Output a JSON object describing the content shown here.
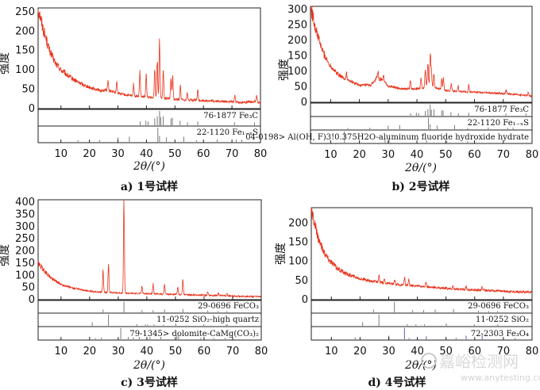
{
  "colors": {
    "trace": "#e8341c",
    "peak": "#7a7a7a",
    "peak_alt": "#5b63a8"
  },
  "watermark": {
    "logo": "嘉峪检测网",
    "url": "www.anytesting.com"
  },
  "chart_data": [
    {
      "type": "line",
      "caption": "a) 1号试样",
      "ylabel": "强度",
      "xlabel": "2θ/(°)",
      "xlim": [
        2,
        80
      ],
      "ylim": [
        0,
        260
      ],
      "yticks": [
        0,
        50,
        100,
        150,
        200,
        250
      ],
      "xticks": [
        10,
        20,
        30,
        40,
        50,
        60,
        70,
        80
      ],
      "baseline": [
        [
          2,
          260
        ],
        [
          4,
          200
        ],
        [
          6,
          150
        ],
        [
          8,
          118
        ],
        [
          10,
          100
        ],
        [
          13,
          82
        ],
        [
          16,
          68
        ],
        [
          20,
          55
        ],
        [
          24,
          46
        ],
        [
          26,
          48
        ],
        [
          28,
          44
        ],
        [
          32,
          36
        ],
        [
          36,
          32
        ],
        [
          40,
          30
        ],
        [
          44,
          28
        ],
        [
          50,
          24
        ],
        [
          56,
          22
        ],
        [
          62,
          20
        ],
        [
          68,
          18
        ],
        [
          74,
          16
        ],
        [
          78,
          18
        ],
        [
          80,
          14
        ]
      ],
      "peaks": [
        [
          26.5,
          25
        ],
        [
          29.6,
          30
        ],
        [
          35.5,
          32
        ],
        [
          37.7,
          65
        ],
        [
          39.9,
          55
        ],
        [
          42.9,
          78
        ],
        [
          43.8,
          100
        ],
        [
          44.6,
          152
        ],
        [
          45.9,
          70
        ],
        [
          48.6,
          55
        ],
        [
          49.2,
          58
        ],
        [
          51.9,
          35
        ],
        [
          54.3,
          18
        ],
        [
          58.0,
          28
        ],
        [
          71.0,
          18
        ],
        [
          78.7,
          18
        ]
      ],
      "references": [
        {
          "label": "76-1877 Fe₃C",
          "lines": [
            [
              37.8,
              0.25
            ],
            [
              39.8,
              0.3
            ],
            [
              40.6,
              0.25
            ],
            [
              42.9,
              0.45
            ],
            [
              43.8,
              0.6
            ],
            [
              44.6,
              0.95
            ],
            [
              45.0,
              0.55
            ],
            [
              45.9,
              0.6
            ],
            [
              48.6,
              0.45
            ],
            [
              49.1,
              0.5
            ],
            [
              51.8,
              0.3
            ],
            [
              54.4,
              0.2
            ],
            [
              58.0,
              0.25
            ],
            [
              70.9,
              0.2
            ],
            [
              77.9,
              0.2
            ]
          ]
        },
        {
          "label": "22-1120 Fe₁₋ₓS",
          "lines": [
            [
              16.0,
              0.1
            ],
            [
              23.6,
              0.12
            ],
            [
              30.0,
              0.3
            ],
            [
              34.0,
              0.35
            ],
            [
              44.0,
              0.95
            ],
            [
              44.6,
              0.4
            ],
            [
              47.0,
              0.3
            ],
            [
              53.1,
              0.35
            ],
            [
              57.6,
              0.1
            ],
            [
              64.8,
              0.15
            ],
            [
              71.5,
              0.15
            ],
            [
              73.4,
              0.15
            ]
          ]
        }
      ]
    },
    {
      "type": "line",
      "caption": "b) 2号试样",
      "ylabel": "强度",
      "xlabel": "2θ/(°)",
      "xlim": [
        3,
        80
      ],
      "ylim": [
        0,
        310
      ],
      "yticks": [
        0,
        50,
        100,
        150,
        200,
        250,
        300
      ],
      "xticks": [
        10,
        20,
        30,
        40,
        50,
        60,
        70,
        80
      ],
      "baseline": [
        [
          3,
          310
        ],
        [
          5,
          230
        ],
        [
          7,
          170
        ],
        [
          9,
          130
        ],
        [
          12,
          95
        ],
        [
          15,
          75
        ],
        [
          20,
          55
        ],
        [
          24,
          55
        ],
        [
          26,
          78
        ],
        [
          28,
          72
        ],
        [
          30,
          52
        ],
        [
          34,
          45
        ],
        [
          38,
          42
        ],
        [
          42,
          45
        ],
        [
          44,
          55
        ],
        [
          46,
          48
        ],
        [
          50,
          38
        ],
        [
          56,
          34
        ],
        [
          62,
          32
        ],
        [
          70,
          28
        ],
        [
          76,
          24
        ],
        [
          80,
          20
        ]
      ],
      "peaks": [
        [
          15.5,
          22
        ],
        [
          26.4,
          22
        ],
        [
          28.4,
          18
        ],
        [
          37.7,
          28
        ],
        [
          41.4,
          38
        ],
        [
          42.9,
          60
        ],
        [
          43.8,
          75
        ],
        [
          44.6,
          110
        ],
        [
          45.0,
          60
        ],
        [
          45.9,
          45
        ],
        [
          48.6,
          35
        ],
        [
          49.2,
          40
        ],
        [
          51.9,
          22
        ],
        [
          54.3,
          18
        ],
        [
          58.0,
          22
        ],
        [
          71.0,
          12
        ],
        [
          78.7,
          10
        ]
      ],
      "references": [
        {
          "label": "76-1877 Fe₃C",
          "lines": [
            [
              37.8,
              0.2
            ],
            [
              39.8,
              0.25
            ],
            [
              40.6,
              0.2
            ],
            [
              42.9,
              0.4
            ],
            [
              43.8,
              0.55
            ],
            [
              44.6,
              0.95
            ],
            [
              45.0,
              0.5
            ],
            [
              45.9,
              0.55
            ],
            [
              48.6,
              0.45
            ],
            [
              49.1,
              0.45
            ],
            [
              51.8,
              0.3
            ],
            [
              54.4,
              0.2
            ],
            [
              58.0,
              0.25
            ],
            [
              70.9,
              0.2
            ],
            [
              77.9,
              0.2
            ]
          ]
        },
        {
          "label": "22-1120 Fe₁₋ₓS",
          "lines": [
            [
              16.0,
              0.1
            ],
            [
              23.6,
              0.12
            ],
            [
              30.0,
              0.3
            ],
            [
              34.0,
              0.35
            ],
            [
              44.0,
              0.95
            ],
            [
              44.6,
              0.4
            ],
            [
              47.0,
              0.3
            ],
            [
              53.1,
              0.35
            ],
            [
              57.6,
              0.1
            ],
            [
              64.8,
              0.15
            ],
            [
              71.5,
              0.15
            ],
            [
              73.4,
              0.15
            ]
          ]
        },
        {
          "label": "04-0198> Al(OH, F)3!0.375H2O-aluminum fluoride hydroxide hydrate",
          "lines": [
            [
              14.8,
              0.95
            ],
            [
              28.9,
              0.25
            ],
            [
              30.3,
              0.3
            ],
            [
              43.3,
              0.2
            ],
            [
              50.4,
              0.15
            ],
            [
              57.6,
              0.12
            ]
          ]
        }
      ]
    },
    {
      "type": "line",
      "caption": "c) 3号试样",
      "ylabel": "强度",
      "xlabel": "2θ/(°)",
      "xlim": [
        2,
        80
      ],
      "ylim": [
        0,
        410
      ],
      "yticks": [
        0,
        50,
        100,
        150,
        200,
        250,
        300,
        350,
        400
      ],
      "xticks": [
        10,
        20,
        30,
        40,
        50,
        60,
        70,
        80
      ],
      "baseline": [
        [
          2,
          150
        ],
        [
          4,
          120
        ],
        [
          6,
          95
        ],
        [
          8,
          78
        ],
        [
          10,
          62
        ],
        [
          14,
          48
        ],
        [
          18,
          38
        ],
        [
          22,
          32
        ],
        [
          26,
          30
        ],
        [
          30,
          28
        ],
        [
          34,
          26
        ],
        [
          38,
          25
        ],
        [
          42,
          24
        ],
        [
          48,
          22
        ],
        [
          54,
          20
        ],
        [
          60,
          18
        ],
        [
          66,
          16
        ],
        [
          72,
          14
        ],
        [
          80,
          12
        ]
      ],
      "peaks": [
        [
          24.7,
          92
        ],
        [
          26.6,
          110
        ],
        [
          32.0,
          368
        ],
        [
          38.3,
          30
        ],
        [
          42.2,
          40
        ],
        [
          46.2,
          40
        ],
        [
          50.8,
          30
        ],
        [
          52.6,
          58
        ],
        [
          61.3,
          15
        ],
        [
          65.0,
          12
        ],
        [
          68.0,
          12
        ]
      ],
      "references": [
        {
          "label": "29-0696 FeCO₃",
          "lines": [
            [
              24.7,
              0.25
            ],
            [
              32.0,
              0.95
            ],
            [
              38.3,
              0.2
            ],
            [
              42.2,
              0.2
            ],
            [
              46.2,
              0.25
            ],
            [
              52.6,
              0.3
            ],
            [
              61.3,
              0.15
            ],
            [
              64.9,
              0.1
            ],
            [
              68.0,
              0.1
            ]
          ]
        },
        {
          "label": "11-0252 SiO₂-high quartz",
          "lines": [
            [
              20.9,
              0.3
            ],
            [
              26.6,
              0.95
            ],
            [
              36.5,
              0.15
            ],
            [
              39.5,
              0.12
            ],
            [
              40.3,
              0.1
            ],
            [
              42.5,
              0.12
            ],
            [
              45.8,
              0.1
            ],
            [
              50.1,
              0.2
            ],
            [
              59.9,
              0.12
            ],
            [
              67.7,
              0.1
            ],
            [
              68.1,
              0.12
            ]
          ]
        },
        {
          "label": "79-1345> dolomite-CaMg(CO₃)₂",
          "lines": [
            [
              22.0,
              0.1
            ],
            [
              24.1,
              0.15
            ],
            [
              30.9,
              0.95
            ],
            [
              33.5,
              0.2
            ],
            [
              35.3,
              0.15
            ],
            [
              37.4,
              0.2
            ],
            [
              41.1,
              0.2
            ],
            [
              44.9,
              0.2
            ],
            [
              50.5,
              0.25
            ],
            [
              51.1,
              0.25
            ],
            [
              58.9,
              0.12
            ],
            [
              63.4,
              0.1
            ],
            [
              67.4,
              0.12
            ]
          ]
        }
      ]
    },
    {
      "type": "line",
      "caption": "d) 4号试样",
      "ylabel": "强度",
      "xlabel": "2θ/(°)",
      "xlim": [
        3,
        80
      ],
      "ylim": [
        0,
        240
      ],
      "yticks": [
        0,
        50,
        100,
        150,
        200
      ],
      "xticks": [
        10,
        20,
        30,
        40,
        50,
        60,
        70,
        80
      ],
      "baseline": [
        [
          3,
          235
        ],
        [
          5,
          170
        ],
        [
          7,
          130
        ],
        [
          9,
          105
        ],
        [
          12,
          82
        ],
        [
          15,
          68
        ],
        [
          20,
          55
        ],
        [
          24,
          48
        ],
        [
          28,
          44
        ],
        [
          32,
          40
        ],
        [
          36,
          38
        ],
        [
          40,
          36
        ],
        [
          46,
          32
        ],
        [
          52,
          28
        ],
        [
          58,
          26
        ],
        [
          64,
          24
        ],
        [
          70,
          22
        ],
        [
          76,
          20
        ],
        [
          80,
          20
        ]
      ],
      "peaks": [
        [
          26.6,
          18
        ],
        [
          28.5,
          10
        ],
        [
          32.1,
          12
        ],
        [
          35.5,
          20
        ],
        [
          37.0,
          14
        ],
        [
          43.0,
          10
        ],
        [
          52.4,
          8
        ],
        [
          57.0,
          8
        ],
        [
          62.6,
          10
        ]
      ],
      "references": [
        {
          "label": "29-0696 FeCO₃",
          "lines": [
            [
              24.7,
              0.25
            ],
            [
              32.0,
              0.95
            ],
            [
              38.3,
              0.2
            ],
            [
              42.2,
              0.2
            ],
            [
              46.2,
              0.25
            ],
            [
              52.6,
              0.3
            ],
            [
              61.3,
              0.15
            ],
            [
              64.9,
              0.1
            ],
            [
              68.0,
              0.1
            ]
          ]
        },
        {
          "label": "11-0252 SiO₂",
          "lines": [
            [
              20.9,
              0.3
            ],
            [
              26.6,
              0.95
            ],
            [
              36.5,
              0.15
            ],
            [
              39.5,
              0.12
            ],
            [
              42.5,
              0.12
            ],
            [
              50.1,
              0.2
            ],
            [
              59.9,
              0.12
            ],
            [
              68.1,
              0.12
            ]
          ]
        },
        {
          "label": "72-2303 Fe₃O₄",
          "lines": [
            [
              18.3,
              0.15
            ],
            [
              30.1,
              0.3
            ],
            [
              35.5,
              0.95
            ],
            [
              37.1,
              0.1
            ],
            [
              43.1,
              0.25
            ],
            [
              53.5,
              0.12
            ],
            [
              57.0,
              0.3
            ],
            [
              62.6,
              0.4
            ],
            [
              74.1,
              0.1
            ]
          ]
        }
      ]
    }
  ]
}
